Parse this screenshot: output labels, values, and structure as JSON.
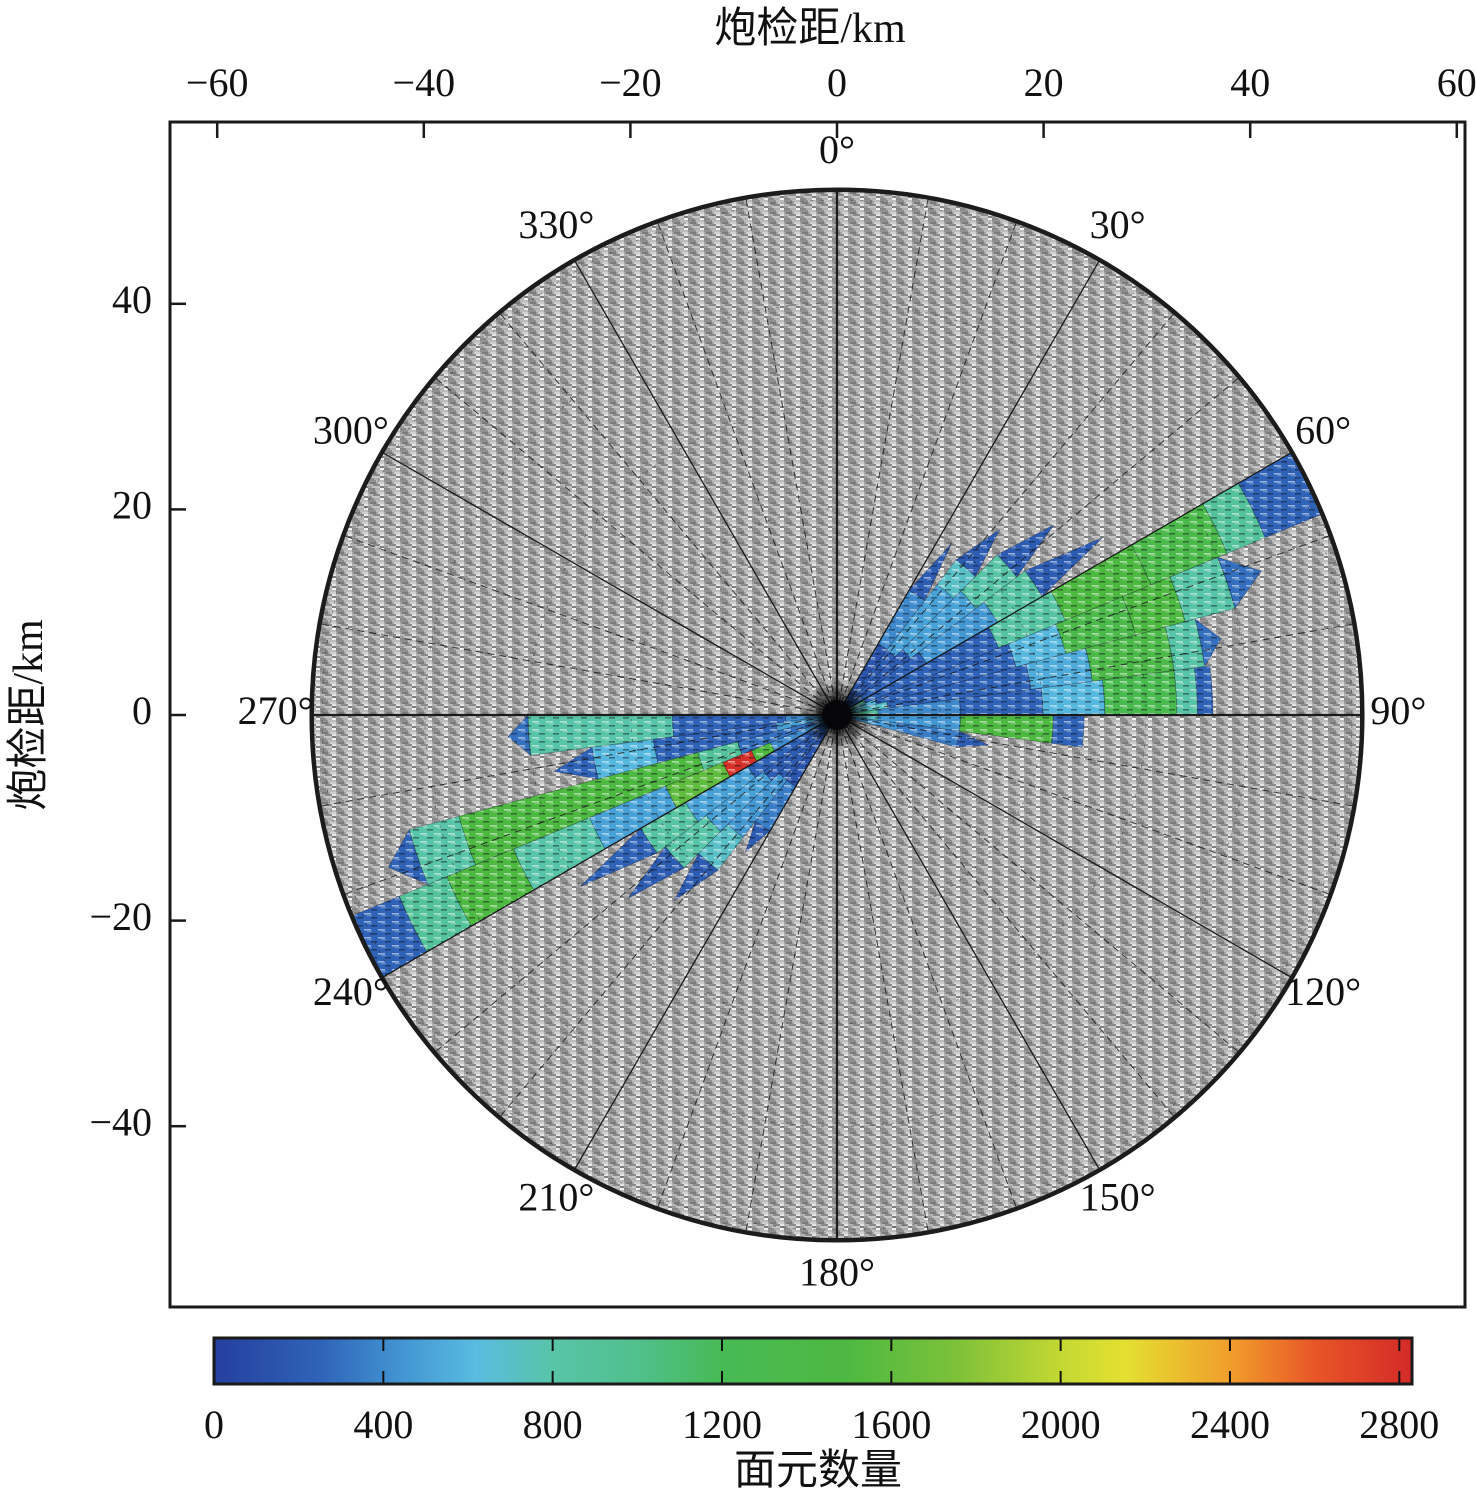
{
  "chart_data": {
    "type": "polar-heatmap-rose",
    "top_axis": {
      "label": "炮检距/km",
      "ticks": [
        -60,
        -40,
        -20,
        0,
        20,
        40,
        60
      ]
    },
    "left_axis": {
      "label": "炮检距/km",
      "ticks": [
        40,
        20,
        0,
        -20,
        -40
      ]
    },
    "angle_labels": [
      "0°",
      "30°",
      "60°",
      "90°",
      "120°",
      "150°",
      "180°",
      "210°",
      "240°",
      "270°",
      "300°",
      "330°"
    ],
    "angle_label_step_deg": 30,
    "grid": {
      "spoke_step_deg": 10,
      "rings_km": [
        10,
        20,
        30,
        40,
        50
      ]
    },
    "outer_radius_km": 51,
    "colorbar": {
      "label": "面元数量",
      "ticks": [
        0,
        400,
        800,
        1200,
        1600,
        2000,
        2400,
        2800
      ],
      "vmin": 0,
      "vmax": 2830
    },
    "colormap_stops": [
      [
        0,
        "#253f9e"
      ],
      [
        250,
        "#2f63b8"
      ],
      [
        450,
        "#4397d3"
      ],
      [
        620,
        "#59bce0"
      ],
      [
        800,
        "#58c4a8"
      ],
      [
        1000,
        "#50c08c"
      ],
      [
        1200,
        "#47ba55"
      ],
      [
        1500,
        "#4eb941"
      ],
      [
        1750,
        "#7cc139"
      ],
      [
        2000,
        "#c3d832"
      ],
      [
        2150,
        "#e3e030"
      ],
      [
        2400,
        "#f19e2b"
      ],
      [
        2600,
        "#e85627"
      ],
      [
        2830,
        "#d42a28"
      ]
    ],
    "background_value_color": "#a2a2a2",
    "sectors": [
      {
        "az0": 30.0,
        "az1": 37.5,
        "jagged": true,
        "segments": [
          [
            0,
            8,
            150
          ],
          [
            8,
            14,
            400
          ],
          [
            14,
            20,
            200
          ]
        ]
      },
      {
        "az0": 37.5,
        "az1": 45.0,
        "jagged": true,
        "segments": [
          [
            0,
            8,
            200
          ],
          [
            8,
            16,
            500
          ],
          [
            16,
            19,
            700
          ],
          [
            19,
            24,
            200
          ]
        ]
      },
      {
        "az0": 45.0,
        "az1": 52.5,
        "jagged": true,
        "segments": [
          [
            0,
            9,
            200
          ],
          [
            9,
            17,
            500
          ],
          [
            17,
            22,
            800
          ],
          [
            22,
            28,
            200
          ]
        ]
      },
      {
        "az0": 52.5,
        "az1": 60.0,
        "jagged": true,
        "segments": [
          [
            0,
            10,
            250
          ],
          [
            10,
            18,
            450
          ],
          [
            18,
            23,
            850
          ],
          [
            23,
            31,
            200
          ]
        ]
      },
      {
        "az0": 60.0,
        "az1": 67.5,
        "jagged": false,
        "segments": [
          [
            0,
            3,
            800
          ],
          [
            3,
            17,
            250
          ],
          [
            17,
            24,
            850
          ],
          [
            24,
            33,
            1500
          ],
          [
            33,
            41,
            1350
          ],
          [
            41,
            45,
            900
          ],
          [
            45,
            51,
            250
          ]
        ]
      },
      {
        "az0": 67.5,
        "az1": 75.0,
        "jagged": true,
        "segments": [
          [
            0,
            4,
            600
          ],
          [
            4,
            18,
            250
          ],
          [
            18,
            23,
            600
          ],
          [
            23,
            30,
            1350
          ],
          [
            30,
            35,
            1500
          ],
          [
            35,
            40,
            800
          ],
          [
            40,
            43.5,
            300
          ]
        ]
      },
      {
        "az0": 75.0,
        "az1": 82.5,
        "jagged": true,
        "segments": [
          [
            0,
            5,
            700
          ],
          [
            5,
            19,
            250
          ],
          [
            19,
            25,
            550
          ],
          [
            25,
            33,
            1400
          ],
          [
            33,
            36,
            800
          ],
          [
            36,
            38,
            300
          ]
        ]
      },
      {
        "az0": 82.5,
        "az1": 90.0,
        "jagged": false,
        "segments": [
          [
            0,
            4,
            900
          ],
          [
            4,
            12,
            400
          ],
          [
            12,
            20,
            250
          ],
          [
            20,
            26,
            600
          ],
          [
            26,
            33,
            1300
          ],
          [
            33,
            35,
            800
          ],
          [
            35,
            36.5,
            250
          ]
        ]
      },
      {
        "az0": 90.0,
        "az1": 97.5,
        "jagged": false,
        "segments": [
          [
            0,
            4,
            700
          ],
          [
            4,
            12,
            450
          ],
          [
            12,
            21,
            1500
          ],
          [
            21,
            24,
            250
          ]
        ]
      },
      {
        "az0": 97.5,
        "az1": 105.0,
        "jagged": true,
        "segments": [
          [
            0,
            6,
            450
          ],
          [
            6,
            12,
            350
          ],
          [
            12,
            15,
            200
          ]
        ]
      },
      {
        "az0": 105.0,
        "az1": 112.5,
        "jagged": true,
        "segments": [
          [
            0,
            10,
            300
          ]
        ]
      },
      {
        "az0": 112.5,
        "az1": 120.0,
        "jagged": true,
        "segments": [
          [
            0,
            7,
            250
          ]
        ]
      },
      {
        "az0": 210.0,
        "az1": 217.5,
        "jagged": true,
        "segments": [
          [
            0,
            8,
            150
          ],
          [
            8,
            13,
            350
          ],
          [
            13,
            16,
            200
          ]
        ]
      },
      {
        "az0": 217.5,
        "az1": 225.0,
        "jagged": true,
        "segments": [
          [
            0,
            8,
            200
          ],
          [
            8,
            15,
            450
          ],
          [
            15,
            19,
            700
          ],
          [
            19,
            24,
            200
          ]
        ]
      },
      {
        "az0": 225.0,
        "az1": 232.5,
        "jagged": true,
        "segments": [
          [
            0,
            9,
            200
          ],
          [
            9,
            16,
            500
          ],
          [
            16,
            21,
            800
          ],
          [
            21,
            27,
            200
          ]
        ]
      },
      {
        "az0": 232.5,
        "az1": 240.0,
        "jagged": true,
        "segments": [
          [
            0,
            10,
            250
          ],
          [
            10,
            17,
            500
          ],
          [
            17,
            22,
            850
          ],
          [
            22,
            30,
            250
          ]
        ]
      },
      {
        "az0": 240.0,
        "az1": 247.5,
        "jagged": false,
        "segments": [
          [
            0,
            7,
            400
          ],
          [
            7,
            9,
            1500
          ],
          [
            9,
            12,
            2800
          ],
          [
            12,
            18,
            1600
          ],
          [
            18,
            26,
            500
          ],
          [
            26,
            34,
            800
          ],
          [
            34,
            41,
            1500
          ],
          [
            41,
            46,
            900
          ],
          [
            46,
            51,
            250
          ]
        ]
      },
      {
        "az0": 247.5,
        "az1": 255.0,
        "jagged": true,
        "segments": [
          [
            0,
            10,
            300
          ],
          [
            10,
            14,
            900
          ],
          [
            14,
            38,
            1500
          ],
          [
            38,
            43,
            800
          ],
          [
            43,
            46,
            250
          ]
        ]
      },
      {
        "az0": 255.0,
        "az1": 262.5,
        "jagged": true,
        "segments": [
          [
            0,
            6,
            500
          ],
          [
            6,
            18,
            250
          ],
          [
            18,
            24,
            600
          ],
          [
            24,
            28,
            250
          ]
        ]
      },
      {
        "az0": 262.5,
        "az1": 270.0,
        "jagged": true,
        "segments": [
          [
            0,
            5,
            400
          ],
          [
            5,
            16,
            250
          ],
          [
            16,
            30,
            800
          ],
          [
            30,
            32,
            300
          ]
        ]
      }
    ]
  }
}
